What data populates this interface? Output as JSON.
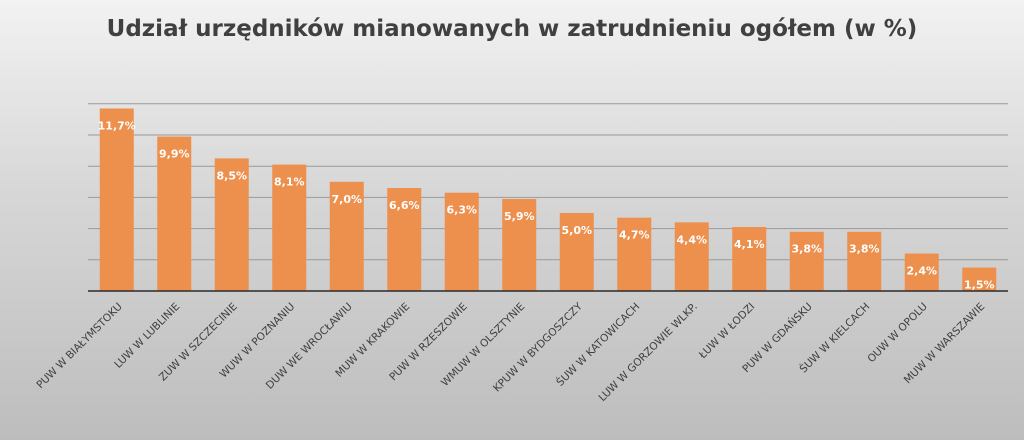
{
  "chart_data": {
    "type": "bar",
    "title": "Udział urzędników mianowanych w zatrudnieniu ogółem (w %)",
    "xlabel": "",
    "ylabel": "",
    "ylim": [
      0,
      12
    ],
    "grid": true,
    "bar_color": "#ed8f4d",
    "categories": [
      "PUW W BIAŁYMSTOKU",
      "LUW W LUBLINIE",
      "ZUW W SZCZECINIE",
      "WUW W POZNANIU",
      "DUW WE WROCŁAWIU",
      "MUW W KRAKOWIE",
      "PUW W RZESZOWIE",
      "WMUW W OLSZTYNIE",
      "KPUW W BYDGOSZCZY",
      "ŚUW W KATOWICACH",
      "LUW W GORZOWIE WLKP.",
      "ŁUW W ŁODZI",
      "PUW W GDAŃSKU",
      "ŚUW W KIELCACH",
      "OUW W OPOLU",
      "MUW W WARSZAWIE"
    ],
    "values": [
      11.7,
      9.9,
      8.5,
      8.1,
      7.0,
      6.6,
      6.3,
      5.9,
      5.0,
      4.7,
      4.4,
      4.1,
      3.8,
      3.8,
      2.4,
      1.5
    ],
    "data_labels": [
      "11,7%",
      "9,9%",
      "8,5%",
      "8,1%",
      "7,0%",
      "6,6%",
      "6,3%",
      "5,9%",
      "5,0%",
      "4,7%",
      "4,4%",
      "4,1%",
      "3,8%",
      "3,8%",
      "2,4%",
      "1,5%"
    ]
  }
}
